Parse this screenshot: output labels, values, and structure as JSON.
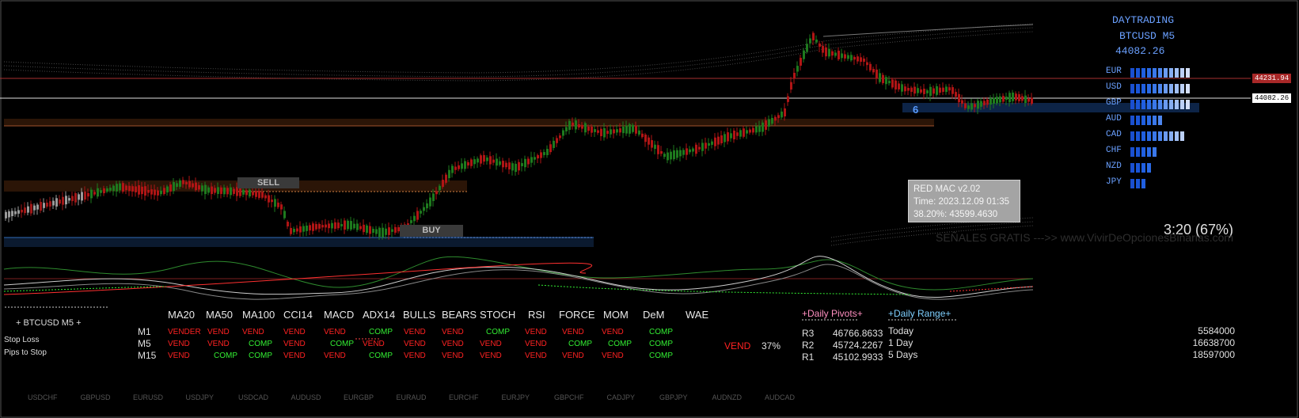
{
  "header": {
    "title": "DAYTRADING",
    "symbol_tf": "BTCUSD M5",
    "price": "44082.26"
  },
  "currency_strength": [
    {
      "name": "EUR",
      "level": 11
    },
    {
      "name": "USD",
      "level": 11
    },
    {
      "name": "GBP",
      "level": 11
    },
    {
      "name": "AUD",
      "level": 6
    },
    {
      "name": "CAD",
      "level": 10
    },
    {
      "name": "CHF",
      "level": 5
    },
    {
      "name": "NZD",
      "level": 4
    },
    {
      "name": "JPY",
      "level": 3
    }
  ],
  "price_labels": {
    "upper": "44231.94",
    "current": "44082.26"
  },
  "zone_labels": {
    "sell": "SELL",
    "buy": "BUY",
    "count": "6"
  },
  "tooltip": {
    "line1": "RED MAC v2.02",
    "line2": "Time: 2023.12.09 01:35",
    "line3": "38.20%: 43599.4630"
  },
  "timer": "3:20 (67%)",
  "watermark": "SEÑALES GRATIS --->> www.VivirDeOpcionesBinarias.com",
  "left_panel": {
    "title": "+ BTCUSD M5 +",
    "stop_loss": "Stop Loss",
    "pips_to_stop": "Pips to Stop"
  },
  "indicators": {
    "columns": [
      "MA20",
      "MA50",
      "MA100",
      "CCI14",
      "MACD",
      "ADX14",
      "BULLS",
      "BEARS",
      "STOCH",
      "RSI",
      "FORCE",
      "MOM",
      "DeM",
      "WAE"
    ],
    "rows": [
      {
        "tf": "M1",
        "signals": [
          "VENDER",
          "VEND",
          "VEND",
          "VEND",
          "VEND",
          "COMP",
          "VEND",
          "VEND",
          "COMP",
          "VEND",
          "VEND",
          "VEND",
          "COMP",
          ""
        ]
      },
      {
        "tf": "M5",
        "signals": [
          "VEND",
          "VEND",
          "COMP",
          "VEND",
          "COMP",
          "VEND",
          "VEND",
          "VEND",
          "VEND",
          "VEND",
          "COMP",
          "COMP",
          "COMP",
          ""
        ]
      },
      {
        "tf": "M15",
        "signals": [
          "VEND",
          "COMP",
          "COMP",
          "VEND",
          "VEND",
          "COMP",
          "VEND",
          "VEND",
          "VEND",
          "VEND",
          "VEND",
          "VEND",
          "COMP",
          ""
        ]
      }
    ],
    "summary_signal": "VEND",
    "summary_percent": "37%"
  },
  "pivots": {
    "title": "+Daily Pivots+",
    "levels": [
      {
        "name": "R3",
        "value": "46766.8633"
      },
      {
        "name": "R2",
        "value": "45724.2267"
      },
      {
        "name": "R1",
        "value": "45102.9933"
      }
    ]
  },
  "range": {
    "title": "+Daily Range+",
    "rows": [
      {
        "label": "Today",
        "value": "5584000"
      },
      {
        "label": "1 Day",
        "value": "16638700"
      },
      {
        "label": "5 Days",
        "value": "18597000"
      }
    ]
  },
  "symbols": [
    "USDCHF",
    "GBPUSD",
    "EURUSD",
    "USDJPY",
    "USDCAD",
    "AUDUSD",
    "EURGBP",
    "EURAUD",
    "EURCHF",
    "EURJPY",
    "GBPCHF",
    "CADJPY",
    "GBPJPY",
    "AUDNZD",
    "AUDCAD"
  ],
  "colors": {
    "bull": "#1e7a1e",
    "bear": "#b01515",
    "accent": "#5a9cff",
    "sell_signal": "#ff2222",
    "buy_signal": "#33ee33"
  }
}
